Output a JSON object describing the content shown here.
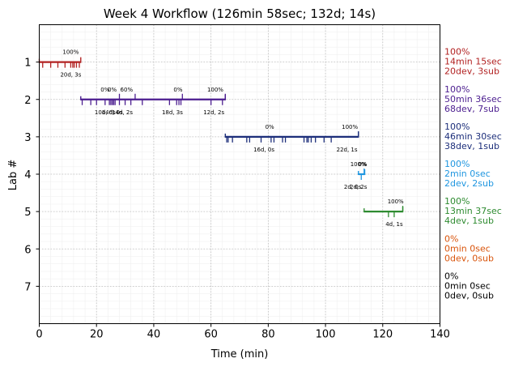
{
  "chart_data": {
    "type": "timeline",
    "title": "Week 4 Workflow (126min 58sec; 132d; 14s)",
    "xlabel": "Time (min)",
    "ylabel": "Lab #",
    "xlim": [
      0,
      140
    ],
    "ylim": [
      8,
      0
    ],
    "xticks": [
      "0",
      "20",
      "40",
      "60",
      "80",
      "100",
      "120",
      "140"
    ],
    "yticks": [
      "1",
      "2",
      "3",
      "4",
      "5",
      "6",
      "7"
    ],
    "grid": true,
    "labs": [
      {
        "lab": 1,
        "color": "#b22222",
        "start": 0,
        "end": 14.5,
        "ticks_below": [
          1.2,
          4.0,
          6.5,
          9.0,
          11.0,
          11.7,
          12.2,
          13.0,
          14.0
        ],
        "ticks_above": [],
        "pct_labels": [
          {
            "x": 11,
            "text": "100%"
          }
        ],
        "dev_labels": [
          {
            "x": 11,
            "text": "20d, 3s"
          }
        ],
        "summary": [
          "100%",
          "14min 15sec",
          "20dev, 3sub"
        ]
      },
      {
        "lab": 2,
        "color": "#4b1d8f",
        "start": 14.5,
        "end": 65.0,
        "ticks_below": [
          15.0,
          18.0,
          20.0,
          23.0,
          24.5,
          25.0,
          25.5,
          26.0,
          26.5,
          28.0,
          30.0,
          32.0,
          36.0,
          45.5,
          48.0,
          48.8,
          49.5,
          60.0,
          64.0
        ],
        "ticks_above": [
          28.0,
          33.5,
          50.0,
          65.0
        ],
        "pct_labels": [
          {
            "x": 23,
            "text": "0%"
          },
          {
            "x": 25.5,
            "text": "0%"
          },
          {
            "x": 30.5,
            "text": "60%"
          },
          {
            "x": 48.5,
            "text": "0%"
          },
          {
            "x": 61.5,
            "text": "100%"
          }
        ],
        "dev_labels": [
          {
            "x": 23,
            "text": "10d, 0s"
          },
          {
            "x": 25.5,
            "text": "14d, 0s"
          },
          {
            "x": 29,
            "text": "14d, 2s"
          },
          {
            "x": 46.5,
            "text": "18d, 3s"
          },
          {
            "x": 61,
            "text": "12d, 2s"
          }
        ],
        "summary": [
          "100%",
          "50min 36sec",
          "68dev, 7sub"
        ]
      },
      {
        "lab": 3,
        "color": "#1c2e7a",
        "start": 65.0,
        "end": 111.5,
        "ticks_below": [
          65.5,
          66.0,
          67.5,
          72.5,
          73.5,
          77.5,
          81.0,
          82.0,
          85.0,
          86.0,
          92.5,
          93.5,
          94.0,
          95.0,
          96.5,
          99.5,
          102.0
        ],
        "ticks_above": [
          111.5
        ],
        "pct_labels": [
          {
            "x": 80.5,
            "text": "0%"
          },
          {
            "x": 108.5,
            "text": "100%"
          }
        ],
        "dev_labels": [
          {
            "x": 78.5,
            "text": "16d, 0s"
          },
          {
            "x": 107.5,
            "text": "22d, 1s"
          }
        ],
        "summary": [
          "100%",
          "46min 30sec",
          "38dev, 1sub"
        ]
      },
      {
        "lab": 4,
        "color": "#1f96e0",
        "start": 111.5,
        "end": 113.7,
        "ticks_below": [
          112.5
        ],
        "ticks_above": [
          113.5
        ],
        "pct_labels": [
          {
            "x": 111.5,
            "text": "100%"
          },
          {
            "x": 113.0,
            "text": "0%"
          }
        ],
        "dev_labels": [
          {
            "x": 109.5,
            "text": "2d, 0s"
          },
          {
            "x": 111.5,
            "text": "2d, 2s"
          }
        ],
        "summary": [
          "100%",
          "2min 0sec",
          "2dev, 2sub"
        ]
      },
      {
        "lab": 5,
        "color": "#2e8b30",
        "start": 113.5,
        "end": 127.0,
        "ticks_below": [
          122.0,
          124.0
        ],
        "ticks_above": [
          127.0
        ],
        "pct_labels": [
          {
            "x": 124.5,
            "text": "100%"
          }
        ],
        "dev_labels": [
          {
            "x": 124.0,
            "text": "4d, 1s"
          }
        ],
        "summary": [
          "100%",
          "13min 37sec",
          "4dev, 1sub"
        ]
      },
      {
        "lab": 6,
        "color": "#d9540b",
        "start": null,
        "end": null,
        "ticks_below": [],
        "ticks_above": [],
        "pct_labels": [],
        "dev_labels": [],
        "summary": [
          "0%",
          "0min 0sec",
          "0dev, 0sub"
        ]
      },
      {
        "lab": 7,
        "color": "#000000",
        "start": null,
        "end": null,
        "ticks_below": [],
        "ticks_above": [],
        "pct_labels": [],
        "dev_labels": [],
        "summary": [
          "0%",
          "0min 0sec",
          "0dev, 0sub"
        ]
      }
    ]
  }
}
